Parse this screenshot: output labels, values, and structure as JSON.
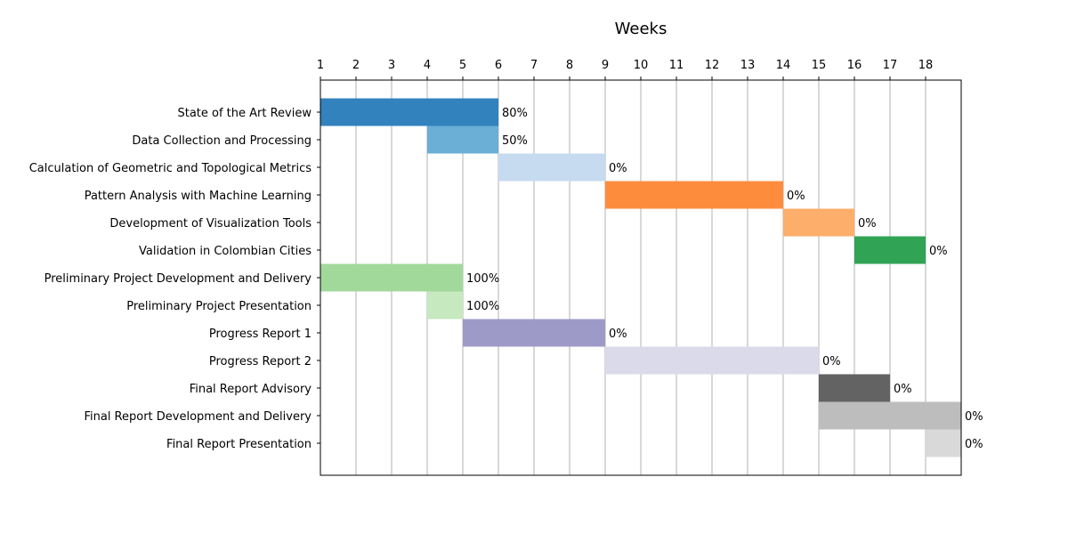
{
  "chart_data": {
    "type": "gantt",
    "xlabel": "Weeks",
    "x_ticks": [
      1,
      2,
      3,
      4,
      5,
      6,
      7,
      8,
      9,
      10,
      11,
      12,
      13,
      14,
      15,
      16,
      17,
      18
    ],
    "xlim": [
      1,
      19
    ],
    "grid": "vertical",
    "tasks": [
      {
        "name": "State of the Art Review",
        "start": 1,
        "end": 6,
        "progress": "80%",
        "color": "#3182bd"
      },
      {
        "name": "Data Collection and Processing",
        "start": 4,
        "end": 6,
        "progress": "50%",
        "color": "#6baed6"
      },
      {
        "name": "Calculation of Geometric and Topological Metrics",
        "start": 6,
        "end": 9,
        "progress": "0%",
        "color": "#c6dbef"
      },
      {
        "name": "Pattern Analysis with Machine Learning",
        "start": 9,
        "end": 14,
        "progress": "0%",
        "color": "#fd8d3c"
      },
      {
        "name": "Development of Visualization Tools",
        "start": 14,
        "end": 16,
        "progress": "0%",
        "color": "#fdae6b"
      },
      {
        "name": "Validation in Colombian Cities",
        "start": 16,
        "end": 18,
        "progress": "0%",
        "color": "#31a354"
      },
      {
        "name": "Preliminary Project Development and Delivery",
        "start": 1,
        "end": 5,
        "progress": "100%",
        "color": "#a1d99b"
      },
      {
        "name": "Preliminary Project Presentation",
        "start": 4,
        "end": 5,
        "progress": "100%",
        "color": "#c7e9c0"
      },
      {
        "name": "Progress Report 1",
        "start": 5,
        "end": 9,
        "progress": "0%",
        "color": "#9e9ac8"
      },
      {
        "name": "Progress Report 2",
        "start": 9,
        "end": 15,
        "progress": "0%",
        "color": "#dadaeb"
      },
      {
        "name": "Final Report Advisory",
        "start": 15,
        "end": 17,
        "progress": "0%",
        "color": "#636363"
      },
      {
        "name": "Final Report Development and Delivery",
        "start": 15,
        "end": 19,
        "progress": "0%",
        "color": "#bdbdbd"
      },
      {
        "name": "Final Report Presentation",
        "start": 18,
        "end": 19,
        "progress": "0%",
        "color": "#d9d9d9"
      }
    ]
  }
}
